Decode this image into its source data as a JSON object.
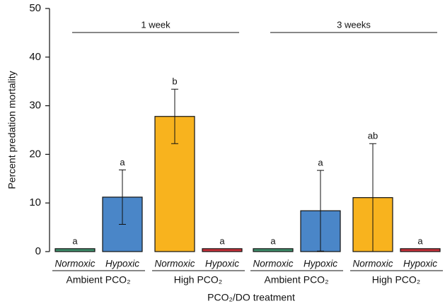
{
  "chart_data": {
    "type": "bar",
    "ylabel": "Percent predation mortality",
    "xlabel": "PCO₂/DO treatment",
    "ylim": [
      0,
      50
    ],
    "yticks": [
      0,
      10,
      20,
      30,
      40,
      50
    ],
    "periods": [
      {
        "label": "1 week",
        "groups": [
          {
            "label": "Ambient PCO₂",
            "bars": [
              {
                "category": "Normoxic",
                "value": 0.6,
                "error": null,
                "letter": "a",
                "color": "#3f8f6b"
              },
              {
                "category": "Hypoxic",
                "value": 11.2,
                "error": 5.6,
                "letter": "a",
                "color": "#4a86c8"
              }
            ]
          },
          {
            "label": "High PCO₂",
            "bars": [
              {
                "category": "Normoxic",
                "value": 27.8,
                "error": 5.6,
                "letter": "b",
                "color": "#f8b31e"
              },
              {
                "category": "Hypoxic",
                "value": 0.6,
                "error": null,
                "letter": "a",
                "color": "#c8313a"
              }
            ]
          }
        ]
      },
      {
        "label": "3 weeks",
        "groups": [
          {
            "label": "Ambient PCO₂",
            "bars": [
              {
                "category": "Normoxic",
                "value": 0.6,
                "error": null,
                "letter": "a",
                "color": "#3f8f6b"
              },
              {
                "category": "Hypoxic",
                "value": 8.4,
                "error": 8.3,
                "letter": "a",
                "color": "#4a86c8"
              }
            ]
          },
          {
            "label": "High PCO₂",
            "bars": [
              {
                "category": "Normoxic",
                "value": 11.1,
                "error": 11.1,
                "letter": "ab",
                "color": "#f8b31e"
              },
              {
                "category": "Hypoxic",
                "value": 0.6,
                "error": null,
                "letter": "a",
                "color": "#c8313a"
              }
            ]
          }
        ]
      }
    ]
  }
}
